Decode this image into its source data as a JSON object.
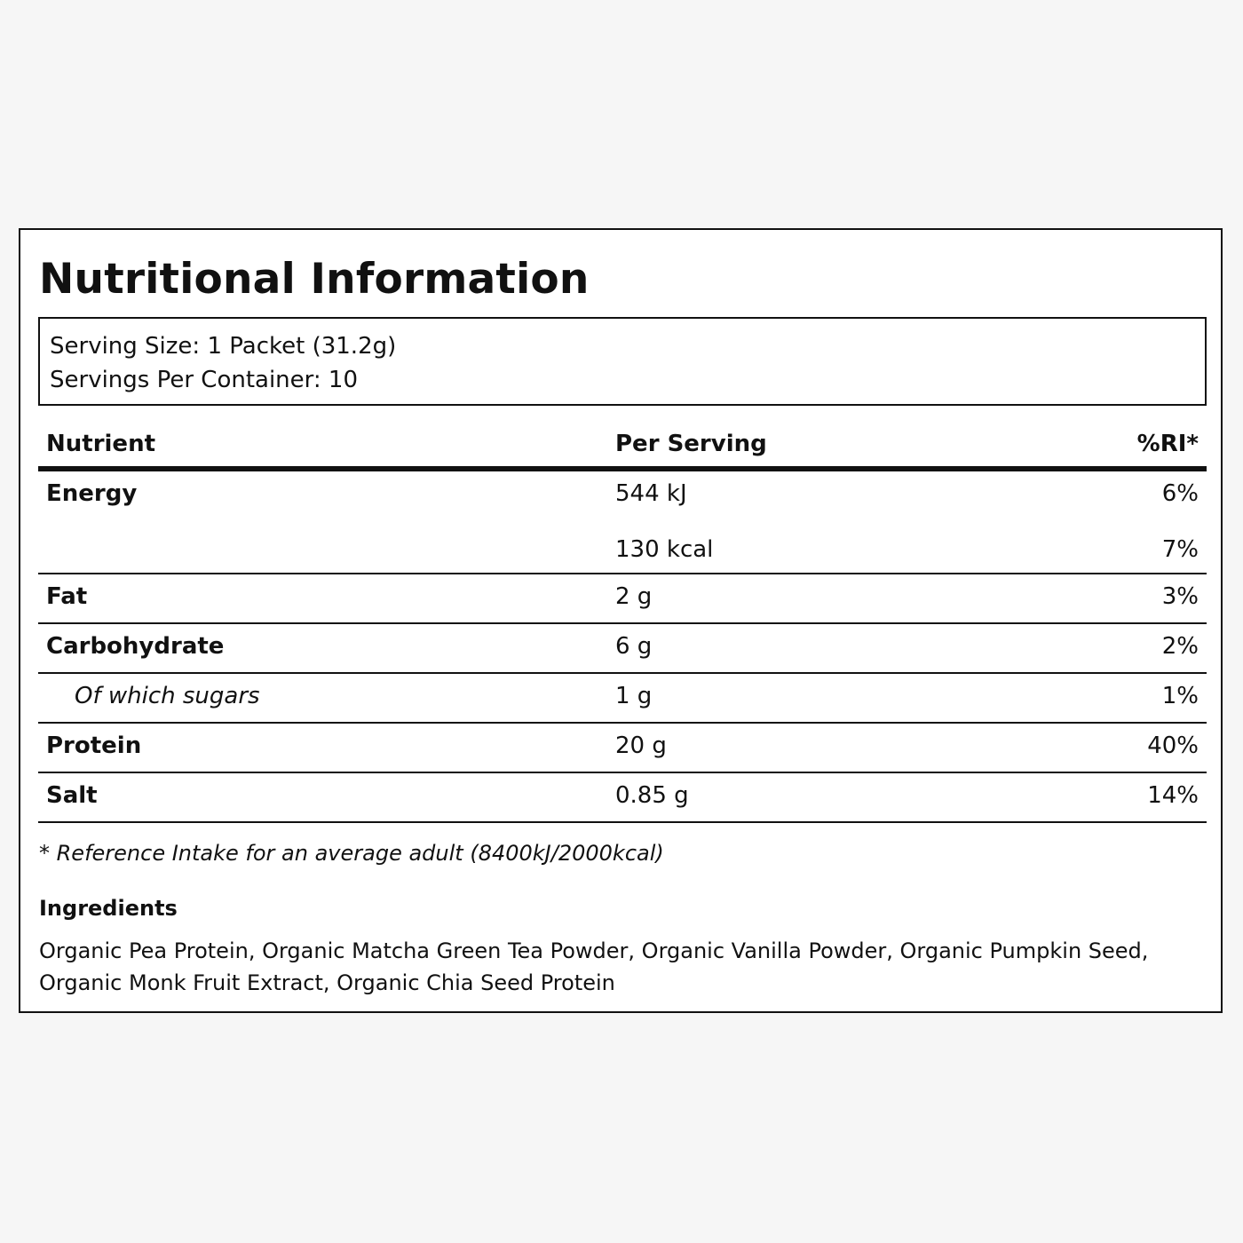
{
  "label": {
    "title": "Nutritional Information",
    "serving_size": "Serving Size: 1 Packet (31.2g)",
    "servings_per_container": "Servings Per Container: 10",
    "columns": {
      "nutrient": "Nutrient",
      "per_serving": "Per Serving",
      "ri": "%RI*"
    },
    "rows": [
      {
        "name": "Energy",
        "amount": "544 kJ",
        "ri": "6%"
      },
      {
        "name": "",
        "amount": "130 kcal",
        "ri": "7%"
      },
      {
        "name": "Fat",
        "amount": "2 g",
        "ri": "3%"
      },
      {
        "name": "Carbohydrate",
        "amount": "6 g",
        "ri": "2%"
      },
      {
        "name": "Of which sugars",
        "amount": "1 g",
        "ri": "1%"
      },
      {
        "name": "Protein",
        "amount": "20 g",
        "ri": "40%"
      },
      {
        "name": "Salt",
        "amount": "0.85 g",
        "ri": "14%"
      }
    ],
    "footnote": "* Reference Intake for an average adult (8400kJ/2000kcal)",
    "ingredients_heading": "Ingredients",
    "ingredients_text": "Organic Pea Protein, Organic Matcha Green Tea Powder, Organic Vanilla Powder, Organic Pumpkin Seed, Organic Monk Fruit Extract, Organic Chia Seed Protein"
  }
}
